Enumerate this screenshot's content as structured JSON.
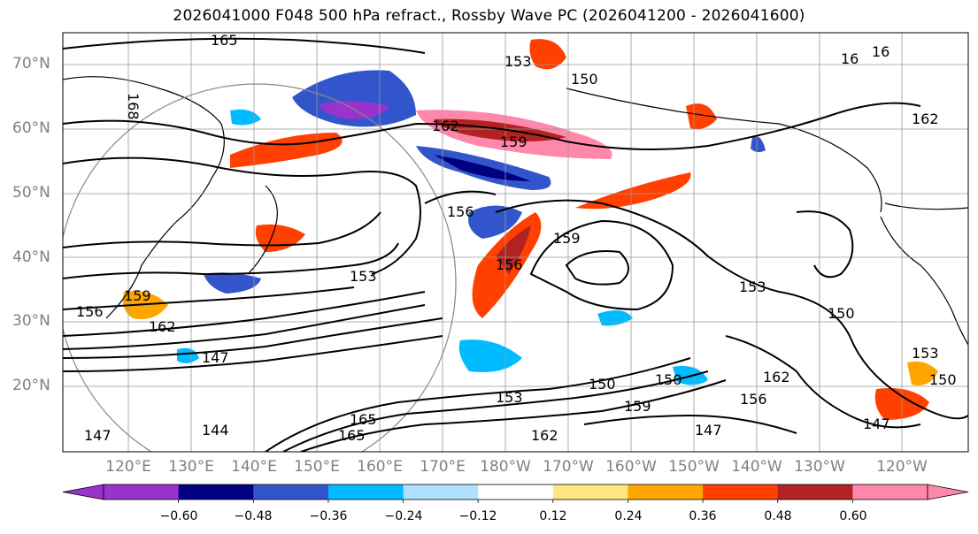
{
  "title": "2026041000 F048 500 hPa refract., Rossby Wave PC (2026041200 - 2026041600)",
  "latitude_labels": [
    "70°N",
    "60°N",
    "50°N",
    "40°N",
    "30°N",
    "20°N"
  ],
  "longitude_labels": [
    "120°E",
    "130°E",
    "140°E",
    "150°E",
    "160°E",
    "170°E",
    "180°W",
    "170°W",
    "160°W",
    "150°W",
    "140°W",
    "130°W",
    "120°W"
  ],
  "colorbar": {
    "ticks": [
      "−0.60",
      "−0.48",
      "−0.36",
      "−0.24",
      "−0.12",
      "0.12",
      "0.24",
      "0.36",
      "0.48",
      "0.60"
    ],
    "colors": [
      "#9933cc",
      "#000080",
      "#3355cc",
      "#00bbff",
      "#b0e0ff",
      "#ffffff",
      "#ffe680",
      "#ffa500",
      "#ff4000",
      "#b22222",
      "#ff88aa",
      "#ff88aa"
    ]
  },
  "contour_labels": [
    "165",
    "168",
    "162",
    "159",
    "156",
    "153",
    "150",
    "147",
    "144",
    "165",
    "165",
    "162",
    "159",
    "156",
    "153",
    "150",
    "147",
    "162",
    "16",
    "16",
    "162",
    "159",
    "156",
    "153",
    "150",
    "147",
    "162",
    "156",
    "153",
    "150",
    "159",
    "153",
    "150",
    "147"
  ]
}
